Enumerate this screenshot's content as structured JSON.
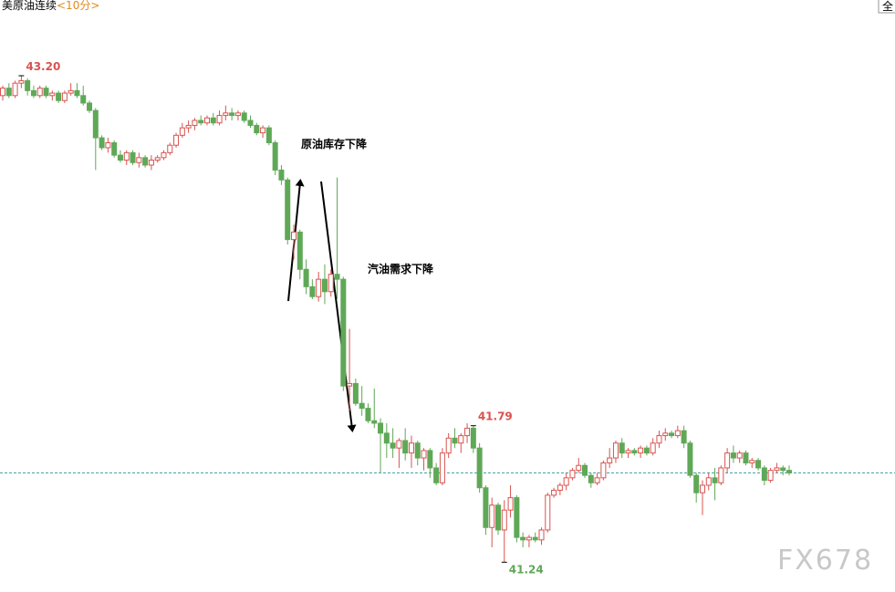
{
  "chart_data": {
    "type": "candlestick",
    "title": "美原油连续",
    "period": "<10分>",
    "corner_button": "全",
    "watermark": "FX678",
    "annotations": [
      "原油库存下降",
      "汽油需求下降"
    ],
    "up_color": "#d9534f",
    "down_color": "#5fa857",
    "ylim": [
      41.12,
      43.45
    ],
    "last_price_line": 41.6,
    "extremes": [
      {
        "value": 43.2,
        "label": "43.20",
        "kind": "high"
      },
      {
        "value": 41.79,
        "label": "41.79",
        "kind": "high"
      },
      {
        "value": 41.24,
        "label": "41.24",
        "kind": "low"
      }
    ],
    "open": [
      43.12,
      43.15,
      43.12,
      43.17,
      43.18,
      43.14,
      43.12,
      43.15,
      43.12,
      43.13,
      43.1,
      43.13,
      43.14,
      43.12,
      43.09,
      43.06,
      42.95,
      42.91,
      42.93,
      42.88,
      42.86,
      42.89,
      42.85,
      42.87,
      42.84,
      42.86,
      42.87,
      42.89,
      42.92,
      42.96,
      42.99,
      43.0,
      43.02,
      43.01,
      43.03,
      43.01,
      43.04,
      43.05,
      43.04,
      43.05,
      43.02,
      43.0,
      42.97,
      42.99,
      42.93,
      42.82,
      42.78,
      42.54,
      42.57,
      42.42,
      42.35,
      42.31,
      42.38,
      42.33,
      42.4,
      42.38,
      41.95,
      41.96,
      41.88,
      41.86,
      41.81,
      41.8,
      41.76,
      41.72,
      41.7,
      41.73,
      41.68,
      41.72,
      41.66,
      41.69,
      41.62,
      41.56,
      41.68,
      41.74,
      41.72,
      41.75,
      41.78,
      41.7,
      41.54,
      41.38,
      41.47,
      41.37,
      41.45,
      41.5,
      41.34,
      41.33,
      41.34,
      41.33,
      41.37,
      41.51,
      41.53,
      41.55,
      41.58,
      41.61,
      41.63,
      41.59,
      41.56,
      41.58,
      41.64,
      41.66,
      41.72,
      41.68,
      41.69,
      41.68,
      41.7,
      41.68,
      41.72,
      41.75,
      41.76,
      41.75,
      41.77,
      41.72,
      41.59,
      41.52,
      41.55,
      41.58,
      41.56,
      41.62,
      41.68,
      41.66,
      41.68,
      41.64,
      41.65,
      41.62,
      41.57,
      41.61,
      41.62,
      41.61
    ],
    "high": [
      43.16,
      43.17,
      43.18,
      43.2,
      43.19,
      43.16,
      43.16,
      43.16,
      43.14,
      43.14,
      43.14,
      43.17,
      43.17,
      43.16,
      43.1,
      43.07,
      42.96,
      42.95,
      42.94,
      42.9,
      42.9,
      42.9,
      42.89,
      42.88,
      42.88,
      42.88,
      42.9,
      42.93,
      42.97,
      43.01,
      43.02,
      43.03,
      43.04,
      43.04,
      43.05,
      43.06,
      43.08,
      43.07,
      43.06,
      43.06,
      43.04,
      43.01,
      43.0,
      43.0,
      42.94,
      42.84,
      42.79,
      42.6,
      42.58,
      42.46,
      42.38,
      42.41,
      42.44,
      42.42,
      42.79,
      42.39,
      42.18,
      41.98,
      41.95,
      41.88,
      41.94,
      41.82,
      41.8,
      41.78,
      41.74,
      41.78,
      41.75,
      41.73,
      41.7,
      41.7,
      41.64,
      41.7,
      41.76,
      41.78,
      41.76,
      41.8,
      41.79,
      41.72,
      41.55,
      41.5,
      41.48,
      41.49,
      41.55,
      41.51,
      41.36,
      41.35,
      41.36,
      41.38,
      41.52,
      41.54,
      41.56,
      41.6,
      41.62,
      41.66,
      41.64,
      41.6,
      41.6,
      41.65,
      41.7,
      41.73,
      41.74,
      41.7,
      41.7,
      41.71,
      41.71,
      41.74,
      41.77,
      41.78,
      41.77,
      41.79,
      41.79,
      41.73,
      41.6,
      41.57,
      41.6,
      41.62,
      41.63,
      41.7,
      41.71,
      41.69,
      41.69,
      41.66,
      41.66,
      41.63,
      41.62,
      41.64,
      41.63,
      41.63
    ],
    "low": [
      43.1,
      43.11,
      43.11,
      43.15,
      43.12,
      43.11,
      43.11,
      43.11,
      43.1,
      43.09,
      43.09,
      43.12,
      43.11,
      43.08,
      43.05,
      42.82,
      42.9,
      42.89,
      42.87,
      42.85,
      42.84,
      42.84,
      42.83,
      42.83,
      42.82,
      42.85,
      42.86,
      42.88,
      42.91,
      42.95,
      42.97,
      42.98,
      43.0,
      43.0,
      43.0,
      43.0,
      43.02,
      43.02,
      43.02,
      43.01,
      42.99,
      42.96,
      42.95,
      42.92,
      42.8,
      42.76,
      42.52,
      42.46,
      42.38,
      42.32,
      42.3,
      42.29,
      42.28,
      42.31,
      42.3,
      41.93,
      41.85,
      41.87,
      41.83,
      41.8,
      41.78,
      41.6,
      41.66,
      41.66,
      41.62,
      41.65,
      41.62,
      41.63,
      41.61,
      41.58,
      41.55,
      41.55,
      41.66,
      41.7,
      41.68,
      41.72,
      41.68,
      41.52,
      41.35,
      41.3,
      41.35,
      41.24,
      41.42,
      41.32,
      41.3,
      41.3,
      41.32,
      41.31,
      41.36,
      41.5,
      41.51,
      41.53,
      41.57,
      41.6,
      41.58,
      41.54,
      41.55,
      41.57,
      41.62,
      41.64,
      41.66,
      41.66,
      41.67,
      41.66,
      41.67,
      41.67,
      41.7,
      41.73,
      41.74,
      41.74,
      41.7,
      41.58,
      41.48,
      41.43,
      41.53,
      41.49,
      41.55,
      41.6,
      41.64,
      41.64,
      41.63,
      41.62,
      41.61,
      41.55,
      41.56,
      41.6,
      41.59,
      41.59
    ],
    "close": [
      43.15,
      43.12,
      43.17,
      43.18,
      43.14,
      43.12,
      43.15,
      43.12,
      43.13,
      43.1,
      43.13,
      43.14,
      43.12,
      43.09,
      43.06,
      42.95,
      42.91,
      42.93,
      42.88,
      42.86,
      42.89,
      42.85,
      42.87,
      42.84,
      42.86,
      42.87,
      42.89,
      42.92,
      42.96,
      42.99,
      43.0,
      43.02,
      43.01,
      43.03,
      43.01,
      43.04,
      43.05,
      43.04,
      43.05,
      43.02,
      43.0,
      42.97,
      42.99,
      42.93,
      42.82,
      42.78,
      42.54,
      42.57,
      42.42,
      42.35,
      42.31,
      42.38,
      42.33,
      42.4,
      42.38,
      41.95,
      41.96,
      41.88,
      41.86,
      41.81,
      41.8,
      41.76,
      41.72,
      41.7,
      41.73,
      41.68,
      41.72,
      41.66,
      41.69,
      41.62,
      41.56,
      41.68,
      41.74,
      41.72,
      41.75,
      41.78,
      41.7,
      41.54,
      41.38,
      41.47,
      41.37,
      41.45,
      41.5,
      41.34,
      41.33,
      41.34,
      41.33,
      41.37,
      41.51,
      41.53,
      41.55,
      41.58,
      41.61,
      41.63,
      41.59,
      41.56,
      41.58,
      41.64,
      41.66,
      41.72,
      41.68,
      41.69,
      41.68,
      41.7,
      41.68,
      41.72,
      41.75,
      41.76,
      41.75,
      41.77,
      41.72,
      41.59,
      41.52,
      41.55,
      41.58,
      41.56,
      41.62,
      41.68,
      41.66,
      41.68,
      41.64,
      41.65,
      41.62,
      41.57,
      41.61,
      41.62,
      41.61,
      41.6
    ]
  }
}
